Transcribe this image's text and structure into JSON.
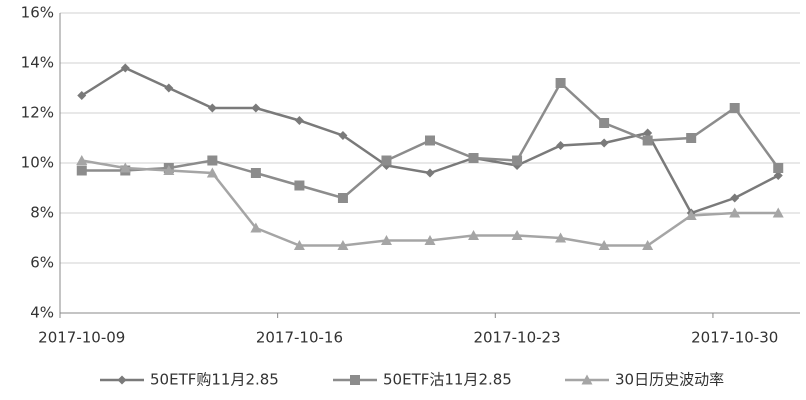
{
  "chart_data": {
    "type": "line",
    "categories": [
      "2017-10-09",
      null,
      null,
      null,
      null,
      "2017-10-16",
      null,
      null,
      null,
      null,
      "2017-10-23",
      null,
      null,
      null,
      null,
      "2017-10-30",
      null
    ],
    "series": [
      {
        "name": "50ETF购11月2.85",
        "color": "#7a7a7a",
        "marker": "diamond",
        "values": [
          12.7,
          13.8,
          13.0,
          12.2,
          12.2,
          11.7,
          11.1,
          9.9,
          9.6,
          10.2,
          9.9,
          10.7,
          10.8,
          11.2,
          8.0,
          8.6,
          9.5
        ]
      },
      {
        "name": "50ETF沽11月2.85",
        "color": "#8c8c8c",
        "marker": "square",
        "values": [
          9.7,
          9.7,
          9.8,
          10.1,
          9.6,
          9.1,
          8.6,
          10.1,
          10.9,
          10.2,
          10.1,
          13.2,
          11.6,
          10.9,
          11.0,
          12.2,
          9.8
        ]
      },
      {
        "name": "30日历史波动率",
        "color": "#a5a5a5",
        "marker": "triangle",
        "values": [
          10.1,
          9.8,
          9.7,
          9.6,
          7.4,
          6.7,
          6.7,
          6.9,
          6.9,
          7.1,
          7.1,
          7.0,
          6.7,
          6.7,
          7.9,
          8.0,
          8.0
        ]
      }
    ],
    "ylim": [
      4,
      16
    ],
    "yticks": [
      {
        "value": 4,
        "label": "4%"
      },
      {
        "value": 6,
        "label": "6%"
      },
      {
        "value": 8,
        "label": "8%"
      },
      {
        "value": 10,
        "label": "10%"
      },
      {
        "value": 12,
        "label": "12%"
      },
      {
        "value": 14,
        "label": "14%"
      },
      {
        "value": 16,
        "label": "16%"
      }
    ],
    "grid": true,
    "legend": "bottom"
  }
}
